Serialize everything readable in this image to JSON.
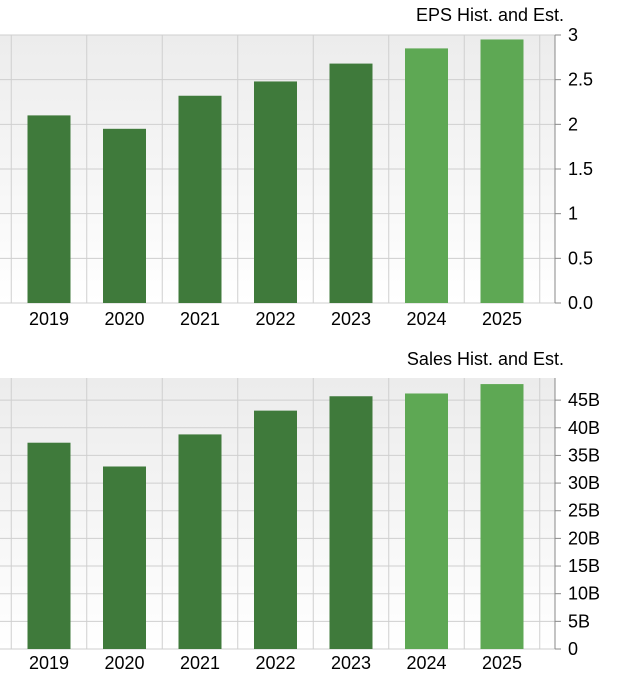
{
  "colors": {
    "historical": "#3f7a3b",
    "estimate": "#5ea854",
    "grid": "#cfcfcf",
    "plot_top": "#ececec",
    "plot_bottom": "#ffffff"
  },
  "chart_data": [
    {
      "type": "bar",
      "title": "EPS Hist. and Est.",
      "categories": [
        "2019",
        "2020",
        "2021",
        "2022",
        "2023",
        "2024",
        "2025"
      ],
      "values": [
        2.1,
        1.95,
        2.32,
        2.48,
        2.68,
        2.85,
        2.95
      ],
      "estimate_from_index": 5,
      "ylim": [
        0,
        3
      ],
      "yticks": [
        0,
        0.5,
        1,
        1.5,
        2,
        2.5,
        3
      ],
      "ytick_labels": [
        "0.0",
        "0.5",
        "1",
        "1.5",
        "2",
        "2.5",
        "3"
      ],
      "grid": true,
      "xlabel": "",
      "ylabel": ""
    },
    {
      "type": "bar",
      "title": "Sales Hist. and Est.",
      "categories": [
        "2019",
        "2020",
        "2021",
        "2022",
        "2023",
        "2024",
        "2025"
      ],
      "values": [
        37.3,
        33.0,
        38.8,
        43.1,
        45.7,
        46.2,
        47.9
      ],
      "estimate_from_index": 5,
      "ylim": [
        0,
        49
      ],
      "yticks": [
        0,
        5,
        10,
        15,
        20,
        25,
        30,
        35,
        40,
        45
      ],
      "ytick_labels": [
        "0",
        "5B",
        "10B",
        "15B",
        "20B",
        "25B",
        "30B",
        "35B",
        "40B",
        "45B"
      ],
      "grid": true,
      "xlabel": "",
      "ylabel": ""
    }
  ]
}
